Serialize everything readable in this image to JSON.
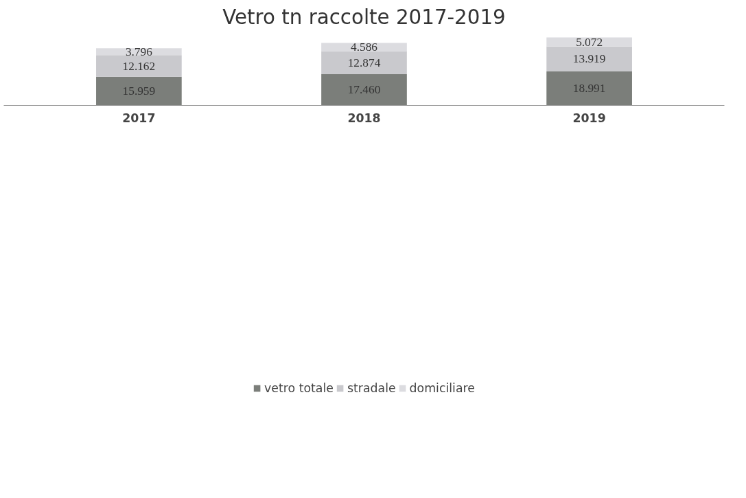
{
  "chart_data": {
    "type": "bar",
    "title": "Vetro tn raccolte 2017-2019",
    "categories": [
      "2017",
      "2018",
      "2019"
    ],
    "stacked": true,
    "legend": "bottom",
    "grid": false,
    "tick_labels": "x",
    "series": [
      {
        "name": "vetro totale",
        "color": "#7b7e7a",
        "values": [
          15959,
          17460,
          18991
        ],
        "value_labels": [
          "15.959",
          "17.460",
          "18.991"
        ]
      },
      {
        "name": "stradale",
        "color": "#c9c9cd",
        "values": [
          12162,
          12874,
          13919
        ],
        "value_labels": [
          "12.162",
          "12.874",
          "13.919"
        ]
      },
      {
        "name": "domiciliare",
        "color": "#dcdce0",
        "values": [
          3796,
          4586,
          5072
        ],
        "value_labels": [
          "3.796",
          "4.586",
          "5.072"
        ]
      }
    ]
  }
}
